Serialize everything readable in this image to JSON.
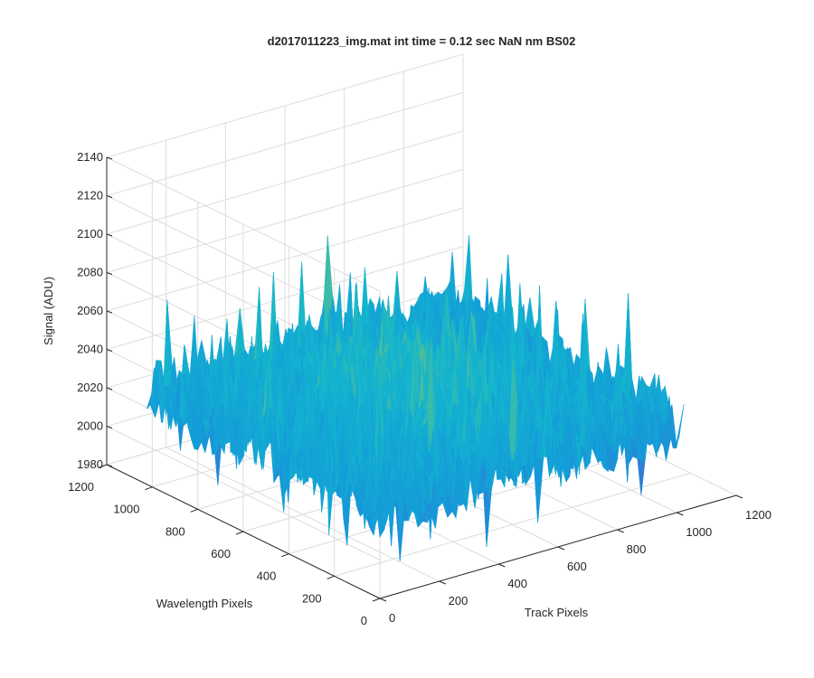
{
  "chart_data": {
    "type": "surface",
    "title": "d2017011223_img.mat int time = 0.12 sec  NaN nm BS02",
    "xlabel": "Track Pixels",
    "ylabel": "Wavelength Pixels",
    "zlabel": "Signal (ADU)",
    "xlim": [
      0,
      1200
    ],
    "ylim": [
      0,
      1200
    ],
    "zlim": [
      1980,
      2140
    ],
    "xticks": [
      "0",
      "200",
      "400",
      "600",
      "800",
      "1000",
      "1200"
    ],
    "yticks": [
      "0",
      "200",
      "400",
      "600",
      "800",
      "1000",
      "1200"
    ],
    "zticks": [
      "1980",
      "2000",
      "2020",
      "2040",
      "2060",
      "2080",
      "2100",
      "2120",
      "2140"
    ],
    "grid": true,
    "colormap": "parula",
    "data_extent": {
      "x": [
        0,
        1024
      ],
      "y": [
        0,
        1024
      ]
    },
    "signal_estimate": {
      "typical_min": 2000,
      "typical_max": 2070,
      "peak": 2125,
      "mean": 2040
    }
  },
  "colors": {
    "axis": "#262626",
    "grid": "#dcdcdc",
    "low": "#3e6fd4",
    "mid": "#14b6ce",
    "high": "#e6d03a"
  }
}
